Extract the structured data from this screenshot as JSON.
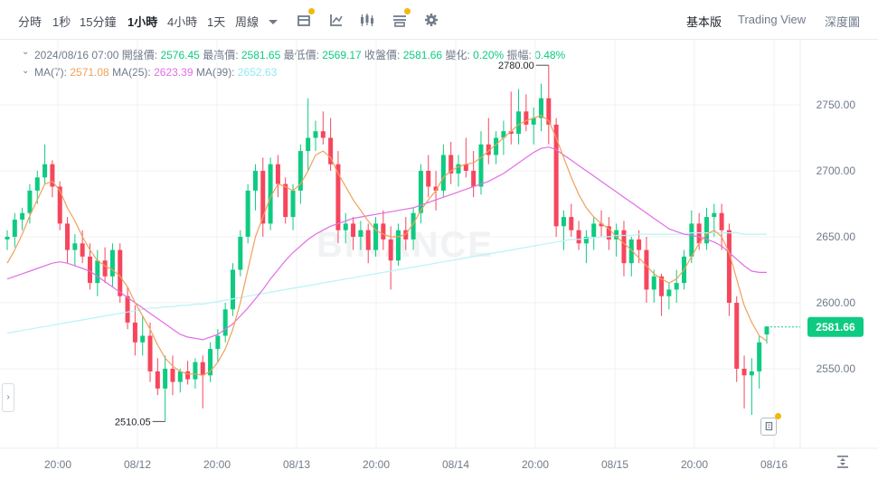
{
  "toolbar": {
    "timeframes": [
      "分時",
      "1秒",
      "15分鐘",
      "1小時",
      "4小時",
      "1天",
      "周線"
    ],
    "active_timeframe": "1小時",
    "more_icon": "chevron-down-icon",
    "tools": [
      "candle-settings-icon",
      "indicator-icon",
      "chart-type-icon",
      "layout-settings-icon",
      "gear-icon"
    ],
    "views": [
      "基本版",
      "Trading View",
      "深度圖"
    ],
    "active_view": "基本版"
  },
  "legend": {
    "date": "2024/08/16 07:00",
    "open_label": "開盤價:",
    "open": "2576.45",
    "high_label": "最高價:",
    "high": "2581.65",
    "low_label": "最低價:",
    "low": "2569.17",
    "close_label": "收盤價:",
    "close": "2581.66",
    "change_label": "變化:",
    "change": "0.20%",
    "amp_label": "振幅:",
    "amp": "0.48%",
    "ma7_label": "MA(7):",
    "ma7": "2571.08",
    "ma25_label": "MA(25):",
    "ma25": "2623.39",
    "ma99_label": "MA(99):",
    "ma99": "2652.63"
  },
  "watermark": "BINANCE",
  "colors": {
    "up": "#0ecb81",
    "down": "#f6465d",
    "ma7": "#f0a05a",
    "ma25": "#e16ee6",
    "ma99": "#b9f3f7",
    "price_tag": "#0ecb81"
  },
  "chart_data": {
    "type": "candlestick",
    "y_ticks": [
      "2750.00",
      "2700.00",
      "2650.00",
      "2600.00",
      "2550.00"
    ],
    "ylim": [
      2505,
      2780
    ],
    "x_ticks": [
      "20:00",
      "08/12",
      "20:00",
      "08/13",
      "20:00",
      "08/14",
      "20:00",
      "08/15",
      "20:00",
      "08/16"
    ],
    "current_price": "2581.66",
    "max_label": "2780.00",
    "min_label": "2510.05",
    "candles": [
      [
        2648,
        2655,
        2640,
        2650
      ],
      [
        2650,
        2668,
        2642,
        2663
      ],
      [
        2663,
        2672,
        2655,
        2668
      ],
      [
        2668,
        2690,
        2660,
        2685
      ],
      [
        2685,
        2700,
        2675,
        2695
      ],
      [
        2695,
        2720,
        2690,
        2705
      ],
      [
        2705,
        2708,
        2680,
        2688
      ],
      [
        2688,
        2692,
        2655,
        2660
      ],
      [
        2660,
        2665,
        2630,
        2640
      ],
      [
        2640,
        2652,
        2628,
        2645
      ],
      [
        2645,
        2655,
        2630,
        2635
      ],
      [
        2635,
        2645,
        2610,
        2615
      ],
      [
        2615,
        2640,
        2605,
        2632
      ],
      [
        2632,
        2642,
        2615,
        2620
      ],
      [
        2620,
        2645,
        2612,
        2640
      ],
      [
        2640,
        2645,
        2600,
        2605
      ],
      [
        2605,
        2612,
        2580,
        2585
      ],
      [
        2585,
        2598,
        2560,
        2570
      ],
      [
        2570,
        2590,
        2560,
        2575
      ],
      [
        2575,
        2585,
        2540,
        2548
      ],
      [
        2548,
        2558,
        2530,
        2535
      ],
      [
        2535,
        2560,
        2510,
        2550
      ],
      [
        2550,
        2560,
        2530,
        2540
      ],
      [
        2540,
        2550,
        2532,
        2548
      ],
      [
        2548,
        2556,
        2538,
        2542
      ],
      [
        2542,
        2558,
        2535,
        2555
      ],
      [
        2555,
        2560,
        2520,
        2545
      ],
      [
        2545,
        2570,
        2540,
        2565
      ],
      [
        2565,
        2580,
        2555,
        2575
      ],
      [
        2575,
        2600,
        2570,
        2595
      ],
      [
        2595,
        2630,
        2590,
        2625
      ],
      [
        2625,
        2655,
        2620,
        2650
      ],
      [
        2650,
        2690,
        2645,
        2685
      ],
      [
        2685,
        2705,
        2670,
        2700
      ],
      [
        2700,
        2710,
        2650,
        2660
      ],
      [
        2660,
        2710,
        2655,
        2705
      ],
      [
        2705,
        2712,
        2680,
        2690
      ],
      [
        2690,
        2695,
        2660,
        2665
      ],
      [
        2665,
        2690,
        2655,
        2685
      ],
      [
        2685,
        2720,
        2675,
        2715
      ],
      [
        2715,
        2755,
        2700,
        2725
      ],
      [
        2725,
        2738,
        2715,
        2730
      ],
      [
        2730,
        2745,
        2720,
        2725
      ],
      [
        2725,
        2740,
        2700,
        2705
      ],
      [
        2705,
        2715,
        2645,
        2655
      ],
      [
        2655,
        2668,
        2645,
        2660
      ],
      [
        2660,
        2665,
        2640,
        2650
      ],
      [
        2650,
        2662,
        2640,
        2655
      ],
      [
        2655,
        2660,
        2630,
        2640
      ],
      [
        2640,
        2665,
        2635,
        2660
      ],
      [
        2660,
        2670,
        2640,
        2648
      ],
      [
        2648,
        2658,
        2610,
        2632
      ],
      [
        2632,
        2660,
        2628,
        2655
      ],
      [
        2655,
        2665,
        2640,
        2648
      ],
      [
        2648,
        2672,
        2640,
        2668
      ],
      [
        2668,
        2705,
        2660,
        2700
      ],
      [
        2700,
        2712,
        2680,
        2688
      ],
      [
        2688,
        2700,
        2670,
        2685
      ],
      [
        2685,
        2720,
        2680,
        2712
      ],
      [
        2712,
        2722,
        2690,
        2698
      ],
      [
        2698,
        2712,
        2688,
        2705
      ],
      [
        2705,
        2725,
        2695,
        2700
      ],
      [
        2700,
        2715,
        2680,
        2688
      ],
      [
        2688,
        2730,
        2682,
        2720
      ],
      [
        2720,
        2740,
        2705,
        2712
      ],
      [
        2712,
        2730,
        2705,
        2725
      ],
      [
        2725,
        2738,
        2712,
        2730
      ],
      [
        2730,
        2760,
        2720,
        2728
      ],
      [
        2728,
        2762,
        2720,
        2745
      ],
      [
        2745,
        2758,
        2730,
        2735
      ],
      [
        2735,
        2748,
        2720,
        2740
      ],
      [
        2740,
        2766,
        2730,
        2755
      ],
      [
        2755,
        2780,
        2720,
        2735
      ],
      [
        2735,
        2740,
        2650,
        2658
      ],
      [
        2658,
        2670,
        2640,
        2665
      ],
      [
        2665,
        2675,
        2650,
        2655
      ],
      [
        2655,
        2662,
        2640,
        2645
      ],
      [
        2645,
        2655,
        2630,
        2650
      ],
      [
        2650,
        2665,
        2640,
        2660
      ],
      [
        2660,
        2670,
        2650,
        2658
      ],
      [
        2658,
        2665,
        2640,
        2648
      ],
      [
        2648,
        2660,
        2635,
        2655
      ],
      [
        2655,
        2662,
        2620,
        2630
      ],
      [
        2630,
        2650,
        2620,
        2648
      ],
      [
        2648,
        2655,
        2630,
        2640
      ],
      [
        2640,
        2650,
        2600,
        2610
      ],
      [
        2610,
        2625,
        2600,
        2620
      ],
      [
        2620,
        2622,
        2590,
        2605
      ],
      [
        2605,
        2615,
        2595,
        2610
      ],
      [
        2610,
        2625,
        2600,
        2615
      ],
      [
        2615,
        2640,
        2610,
        2635
      ],
      [
        2635,
        2670,
        2630,
        2660
      ],
      [
        2660,
        2668,
        2640,
        2645
      ],
      [
        2645,
        2672,
        2640,
        2665
      ],
      [
        2665,
        2675,
        2650,
        2668
      ],
      [
        2668,
        2675,
        2640,
        2655
      ],
      [
        2655,
        2660,
        2590,
        2600
      ],
      [
        2600,
        2605,
        2540,
        2550
      ],
      [
        2550,
        2560,
        2520,
        2545
      ],
      [
        2545,
        2558,
        2515,
        2548
      ],
      [
        2548,
        2575,
        2535,
        2570
      ],
      [
        2576,
        2582,
        2569,
        2582
      ]
    ],
    "ma7": [
      2630,
      2640,
      2652,
      2666,
      2678,
      2690,
      2692,
      2685,
      2672,
      2662,
      2650,
      2640,
      2632,
      2628,
      2625,
      2620,
      2612,
      2600,
      2590,
      2580,
      2568,
      2558,
      2552,
      2548,
      2546,
      2546,
      2545,
      2548,
      2555,
      2565,
      2580,
      2600,
      2625,
      2650,
      2665,
      2680,
      2690,
      2688,
      2685,
      2690,
      2700,
      2712,
      2715,
      2710,
      2698,
      2688,
      2678,
      2670,
      2662,
      2655,
      2652,
      2650,
      2650,
      2652,
      2660,
      2670,
      2678,
      2685,
      2695,
      2700,
      2703,
      2705,
      2706,
      2710,
      2715,
      2720,
      2725,
      2730,
      2735,
      2738,
      2740,
      2742,
      2738,
      2725,
      2710,
      2695,
      2682,
      2672,
      2665,
      2660,
      2656,
      2650,
      2645,
      2640,
      2634,
      2628,
      2622,
      2618,
      2615,
      2618,
      2625,
      2635,
      2645,
      2652,
      2655,
      2650,
      2638,
      2618,
      2598,
      2585,
      2575,
      2571
    ],
    "ma25": [
      2618,
      2620,
      2622,
      2624,
      2626,
      2628,
      2630,
      2631,
      2630,
      2628,
      2626,
      2624,
      2620,
      2616,
      2612,
      2608,
      2604,
      2600,
      2596,
      2592,
      2588,
      2584,
      2580,
      2576,
      2574,
      2573,
      2572,
      2574,
      2576,
      2580,
      2584,
      2590,
      2596,
      2603,
      2610,
      2618,
      2625,
      2632,
      2638,
      2643,
      2648,
      2652,
      2655,
      2658,
      2660,
      2662,
      2664,
      2665,
      2666,
      2667,
      2668,
      2669,
      2670,
      2671,
      2672,
      2674,
      2676,
      2678,
      2680,
      2682,
      2684,
      2686,
      2688,
      2690,
      2692,
      2695,
      2698,
      2702,
      2706,
      2710,
      2714,
      2717,
      2718,
      2716,
      2712,
      2708,
      2704,
      2700,
      2696,
      2692,
      2688,
      2684,
      2680,
      2676,
      2672,
      2668,
      2664,
      2660,
      2656,
      2654,
      2652,
      2651,
      2650,
      2648,
      2646,
      2643,
      2638,
      2633,
      2628,
      2624,
      2623,
      2623
    ],
    "ma99": [
      2577,
      2578,
      2579,
      2580,
      2581,
      2582,
      2583,
      2584,
      2585,
      2586,
      2587,
      2588,
      2589,
      2590,
      2591,
      2592,
      2593,
      2594,
      2595,
      2596,
      2596,
      2597,
      2597,
      2598,
      2598,
      2599,
      2599,
      2600,
      2601,
      2602,
      2603,
      2604,
      2605,
      2606,
      2607,
      2608,
      2609,
      2610,
      2611,
      2612,
      2613,
      2614,
      2615,
      2616,
      2617,
      2618,
      2619,
      2620,
      2621,
      2622,
      2623,
      2624,
      2625,
      2626,
      2627,
      2628,
      2629,
      2630,
      2631,
      2632,
      2633,
      2634,
      2635,
      2636,
      2637,
      2638,
      2639,
      2640,
      2641,
      2642,
      2643,
      2644,
      2645,
      2646,
      2647,
      2648,
      2648,
      2649,
      2649,
      2650,
      2650,
      2651,
      2651,
      2651,
      2652,
      2652,
      2652,
      2652,
      2652,
      2652,
      2652,
      2653,
      2653,
      2653,
      2653,
      2653,
      2653,
      2653,
      2652,
      2652,
      2652,
      2652
    ]
  }
}
